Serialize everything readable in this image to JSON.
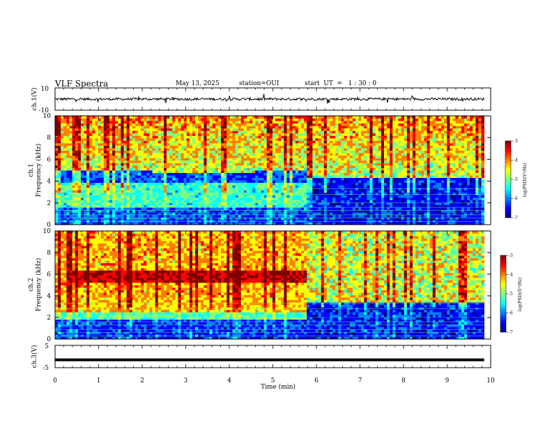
{
  "header": {
    "title": "VLF Spectra",
    "date": "May 13, 2025",
    "station": "station=OUI",
    "start": "start  UT  =   1 : 30 : 0"
  },
  "colors": {
    "jet": [
      "#00007f",
      "#0000ff",
      "#007fff",
      "#00ffff",
      "#7fff7f",
      "#ffff00",
      "#ff7f00",
      "#ff0000",
      "#7f0000"
    ]
  },
  "chart_data": [
    {
      "type": "line",
      "panel": "waveform-ch1",
      "ylabel": "ch.1(V)",
      "ylim": [
        -10,
        10
      ],
      "yticks": [
        "10",
        "-10"
      ],
      "xlim": [
        0,
        10
      ],
      "series": [
        {
          "values_description": "noise around 0 V",
          "level": 0
        }
      ]
    },
    {
      "type": "heatmap",
      "panel": "spectrogram-ch1",
      "ylabel": "ch.1\nFrequency (kHz)",
      "ylabel_line1": "ch.1",
      "ylabel_line2": "Frequency (kHz)",
      "ylim": [
        0,
        10
      ],
      "yticks": [
        "0",
        "2",
        "4",
        "6",
        "8",
        "10"
      ],
      "xlim": [
        0,
        10
      ],
      "colorbar": {
        "label": "log(PSD)(V²/Hz)",
        "range": [
          -7,
          -3
        ],
        "ticks": [
          "-3",
          "-4",
          "-5",
          "-6",
          "-7"
        ]
      },
      "segments": [
        {
          "x": [
            0,
            2.2
          ],
          "low_band_top_khz": 5.0
        },
        {
          "x": [
            2.2,
            4.6
          ],
          "low_band_top_khz": 4.7
        },
        {
          "x": [
            4.6,
            5.75
          ],
          "low_band_top_khz": 5.1
        },
        {
          "x": [
            5.75,
            9.85
          ],
          "low_band_top_khz": 4.3
        }
      ]
    },
    {
      "type": "heatmap",
      "panel": "spectrogram-ch2",
      "ylabel": "ch.2\nFrequency (kHz)",
      "ylabel_line1": "ch.2",
      "ylabel_line2": "Frequency (kHz)",
      "ylim": [
        0,
        10
      ],
      "yticks": [
        "0",
        "2",
        "4",
        "6",
        "8",
        "10"
      ],
      "xlim": [
        0,
        10
      ],
      "colorbar": {
        "label": "log(PSD)(V²/Hz)",
        "range": [
          -7,
          -3
        ],
        "ticks": [
          "-3",
          "-4",
          "-5",
          "-6",
          "-7"
        ]
      },
      "features": {
        "red_band_khz": [
          5.2,
          6.3
        ],
        "red_band_x": [
          0.4,
          5.75
        ]
      }
    },
    {
      "type": "line",
      "panel": "waveform-ch3",
      "ylabel": "ch.3(V)",
      "ylim": [
        -5,
        5
      ],
      "yticks": [
        "5",
        "-5"
      ],
      "xlim": [
        0,
        10
      ],
      "xlabel": "Time (min)",
      "xticks": [
        "0",
        "1",
        "2",
        "3",
        "4",
        "5",
        "6",
        "7",
        "8",
        "9",
        "10"
      ],
      "series": [
        {
          "level": -1.5,
          "x": [
            0,
            9.85
          ]
        }
      ]
    }
  ]
}
